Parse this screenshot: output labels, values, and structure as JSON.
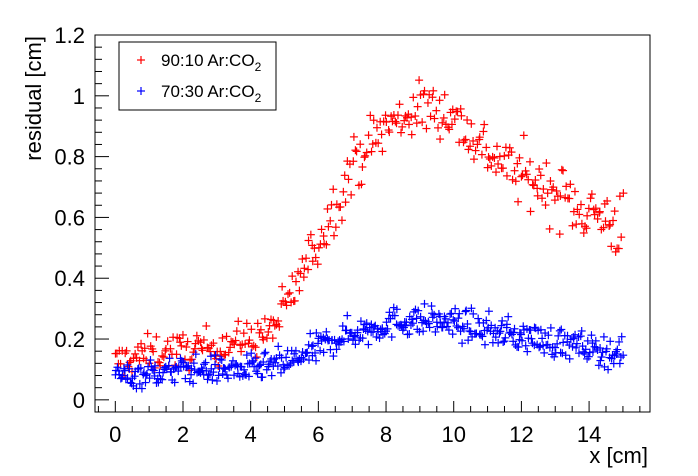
{
  "chart_data": {
    "type": "scatter",
    "title": "",
    "xlabel": "x [cm]",
    "ylabel": "residual [cm]",
    "xlim": [
      -0.6,
      15.8
    ],
    "ylim": [
      -0.04,
      1.2
    ],
    "x_ticks": [
      "0",
      "2",
      "4",
      "6",
      "8",
      "10",
      "12",
      "14"
    ],
    "y_ticks": [
      "0",
      "0.2",
      "0.4",
      "0.6",
      "0.8",
      "1",
      "1.2"
    ],
    "marker": "+",
    "grid": false,
    "legend_position": "top-left",
    "series": [
      {
        "name": "90:10 Ar:CO",
        "name_subscript": "2",
        "color": "#ff0000",
        "profile_x": [
          0,
          0.5,
          1,
          1.5,
          2,
          2.5,
          3,
          3.5,
          4,
          4.5,
          4.8,
          5.2,
          5.6,
          6,
          6.4,
          6.8,
          7.2,
          7.6,
          8,
          8.4,
          8.8,
          9.2,
          9.6,
          10,
          10.4,
          10.8,
          11.2,
          11.6,
          12,
          12.4,
          12.8,
          13.2,
          13.6,
          14,
          14.4,
          14.8,
          15
        ],
        "profile_y": [
          0.12,
          0.14,
          0.15,
          0.16,
          0.16,
          0.17,
          0.18,
          0.19,
          0.2,
          0.22,
          0.26,
          0.34,
          0.44,
          0.52,
          0.62,
          0.72,
          0.8,
          0.85,
          0.9,
          0.92,
          0.95,
          0.96,
          0.96,
          0.93,
          0.88,
          0.84,
          0.8,
          0.77,
          0.74,
          0.72,
          0.69,
          0.67,
          0.64,
          0.62,
          0.6,
          0.58,
          0.57
        ],
        "spread": [
          0.06,
          0.06,
          0.06,
          0.06,
          0.06,
          0.06,
          0.06,
          0.06,
          0.06,
          0.07,
          0.07,
          0.08,
          0.08,
          0.08,
          0.09,
          0.09,
          0.09,
          0.09,
          0.09,
          0.09,
          0.09,
          0.09,
          0.09,
          0.09,
          0.09,
          0.09,
          0.09,
          0.09,
          0.1,
          0.1,
          0.1,
          0.1,
          0.1,
          0.1,
          0.1,
          0.11,
          0.12
        ],
        "n_points": 360
      },
      {
        "name": "70:30 Ar:CO",
        "name_subscript": "2",
        "color": "#0000ff",
        "profile_x": [
          0,
          0.5,
          1,
          1.5,
          2,
          2.5,
          3,
          3.5,
          4,
          4.5,
          5,
          5.5,
          6,
          6.5,
          7,
          7.5,
          8,
          8.5,
          9,
          9.5,
          10,
          10.5,
          11,
          11.5,
          12,
          12.5,
          13,
          13.5,
          14,
          14.5,
          15
        ],
        "profile_y": [
          0.08,
          0.08,
          0.09,
          0.09,
          0.1,
          0.1,
          0.1,
          0.1,
          0.1,
          0.11,
          0.12,
          0.14,
          0.17,
          0.2,
          0.22,
          0.23,
          0.25,
          0.26,
          0.26,
          0.26,
          0.25,
          0.24,
          0.23,
          0.22,
          0.21,
          0.2,
          0.19,
          0.18,
          0.17,
          0.16,
          0.15
        ],
        "spread": [
          0.045,
          0.045,
          0.045,
          0.045,
          0.045,
          0.045,
          0.045,
          0.045,
          0.045,
          0.045,
          0.05,
          0.05,
          0.05,
          0.05,
          0.05,
          0.05,
          0.05,
          0.05,
          0.05,
          0.05,
          0.05,
          0.05,
          0.05,
          0.05,
          0.05,
          0.05,
          0.05,
          0.05,
          0.05,
          0.05,
          0.05
        ],
        "n_points": 480
      }
    ]
  }
}
